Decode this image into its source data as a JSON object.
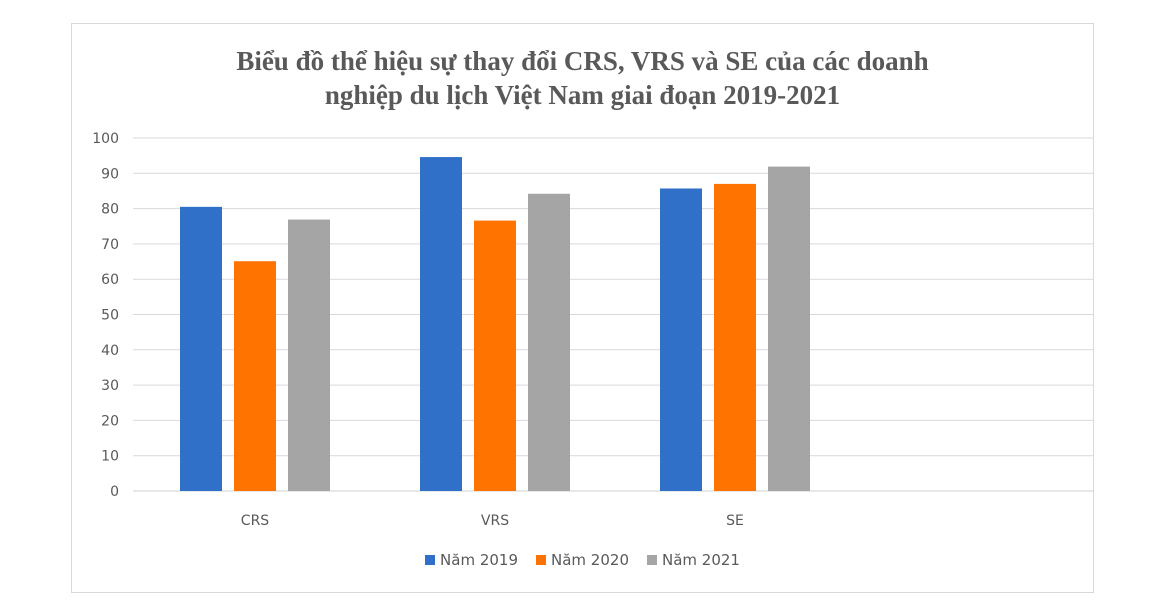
{
  "chart_data": {
    "type": "bar",
    "title_lines": [
      "Biểu đồ thể hiệu sự thay đổi CRS, VRS và SE của các doanh",
      "nghiệp du lịch Việt Nam giai đoạn 2019-2021"
    ],
    "categories": [
      "CRS",
      "VRS",
      "SE"
    ],
    "series": [
      {
        "name": "Năm 2019",
        "color": "#3070c8",
        "values": [
          80.5,
          94.6,
          85.7
        ]
      },
      {
        "name": "Năm 2020",
        "color": "#ff7400",
        "values": [
          65.1,
          76.6,
          87.0
        ]
      },
      {
        "name": "Năm 2021",
        "color": "#a5a5a5",
        "values": [
          76.9,
          84.2,
          91.9
        ]
      }
    ],
    "y_ticks": [
      "0",
      "10",
      "20",
      "30",
      "40",
      "50",
      "60",
      "70",
      "80",
      "90",
      "100"
    ],
    "ylim": [
      0,
      100
    ],
    "grid": true,
    "legend_position": "bottom"
  }
}
